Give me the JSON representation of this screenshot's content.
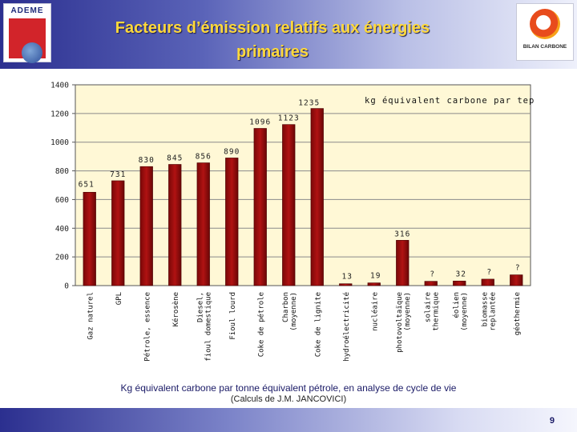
{
  "header": {
    "title_line1": "Facteurs d’émission relatifs aux énergies",
    "title_line2": "primaires",
    "left_logo_text": "ADEME",
    "right_logo_text": "BILAN CARBONE"
  },
  "colors": {
    "bar": "#b01212",
    "plot_bg": "#fff8d6",
    "title": "#ffd93b"
  },
  "chart_data": {
    "type": "bar",
    "title": "",
    "unit_label": "kg équivalent carbone par tep",
    "ylim": [
      0,
      1400
    ],
    "yticks": [
      0,
      200,
      400,
      600,
      800,
      1000,
      1200,
      1400
    ],
    "grid": true,
    "categories": [
      "Gaz naturel",
      "GPL",
      "Pétrole, essence",
      "Kérosène",
      "Diesel, fioul domestique",
      "Fioul lourd",
      "Coke de pétrole",
      "Charbon (moyenne)",
      "Coke de lignite",
      "hydroélectricité",
      "nucléaire",
      "photovoltaïque (moyenne)",
      "solaire thermique",
      "éolien (moyenne)",
      "biomasse replantée",
      "géothermie"
    ],
    "values": [
      651,
      731,
      830,
      845,
      856,
      890,
      1096,
      1123,
      1235,
      13,
      19,
      316,
      30,
      32,
      45,
      75
    ],
    "labels": [
      "651",
      "731",
      "830",
      "845",
      "856",
      "890",
      "1096",
      "1123",
      "1235",
      "13",
      "19",
      "316",
      "?",
      "32",
      "?",
      "?"
    ]
  },
  "caption": "Kg équivalent carbone par tonne équivalent pétrole, en analyse de cycle de vie",
  "subcaption": "(Calculs de J.M. JANCOVICI)",
  "page_number": "9"
}
